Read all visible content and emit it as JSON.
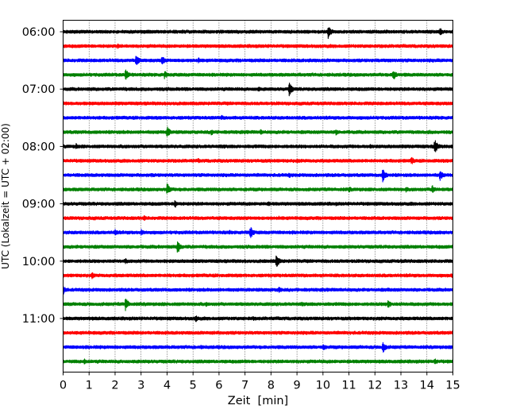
{
  "chart_data": {
    "type": "line",
    "title": "",
    "xlabel": "Zeit  [min]",
    "ylabel": "UTC (Lokalzeit = UTC + 02:00)",
    "xlim": [
      0,
      15
    ],
    "x_ticks": [
      "0",
      "1",
      "2",
      "3",
      "4",
      "5",
      "6",
      "7",
      "8",
      "9",
      "10",
      "11",
      "12",
      "13",
      "14",
      "15"
    ],
    "y_ticks": [
      "06:00",
      "07:00",
      "08:00",
      "09:00",
      "10:00",
      "11:00"
    ],
    "grid": "vertical dotted",
    "trace_minutes": 15,
    "color_cycle": [
      "#000000",
      "#ff0000",
      "#0000ff",
      "#008000"
    ],
    "series": [
      {
        "start": "06:00",
        "bursts": [
          [
            10.2,
            1.0
          ],
          [
            14.5,
            0.6
          ],
          [
            3.1,
            0.35
          ],
          [
            4.6,
            0.3
          ]
        ]
      },
      {
        "start": "06:15",
        "bursts": [
          [
            2.1,
            0.35
          ],
          [
            7.4,
            0.25
          ],
          [
            11.8,
            0.25
          ]
        ]
      },
      {
        "start": "06:30",
        "bursts": [
          [
            2.8,
            0.9
          ],
          [
            3.8,
            0.7
          ],
          [
            5.2,
            0.45
          ],
          [
            9.5,
            0.35
          ],
          [
            12.5,
            0.35
          ]
        ]
      },
      {
        "start": "06:45",
        "bursts": [
          [
            2.4,
            0.9
          ],
          [
            3.9,
            0.6
          ],
          [
            9.1,
            0.3
          ],
          [
            12.7,
            0.85
          ]
        ]
      },
      {
        "start": "07:00",
        "bursts": [
          [
            8.7,
            1.0
          ],
          [
            7.5,
            0.4
          ],
          [
            1.2,
            0.2
          ]
        ]
      },
      {
        "start": "07:15",
        "bursts": [
          [
            5.5,
            0.2
          ],
          [
            10.3,
            0.2
          ]
        ]
      },
      {
        "start": "07:30",
        "bursts": [
          [
            6.1,
            0.4
          ],
          [
            3.0,
            0.2
          ],
          [
            11.5,
            0.2
          ]
        ]
      },
      {
        "start": "07:45",
        "bursts": [
          [
            4.0,
            0.85
          ],
          [
            5.7,
            0.5
          ],
          [
            7.6,
            0.4
          ],
          [
            10.5,
            0.45
          ],
          [
            14.1,
            0.3
          ]
        ]
      },
      {
        "start": "08:00",
        "bursts": [
          [
            14.3,
            1.1
          ],
          [
            0.5,
            0.45
          ],
          [
            3.2,
            0.3
          ],
          [
            6.2,
            0.3
          ],
          [
            11.8,
            0.35
          ]
        ]
      },
      {
        "start": "08:15",
        "bursts": [
          [
            13.4,
            0.6
          ],
          [
            5.2,
            0.35
          ],
          [
            9.0,
            0.35
          ]
        ]
      },
      {
        "start": "08:30",
        "bursts": [
          [
            12.3,
            1.0
          ],
          [
            14.5,
            0.8
          ],
          [
            8.7,
            0.4
          ],
          [
            3.4,
            0.3
          ]
        ]
      },
      {
        "start": "08:45",
        "bursts": [
          [
            4.0,
            0.9
          ],
          [
            14.2,
            0.7
          ],
          [
            11.0,
            0.45
          ],
          [
            13.2,
            0.4
          ],
          [
            6.0,
            0.3
          ]
        ]
      },
      {
        "start": "09:00",
        "bursts": [
          [
            4.3,
            0.6
          ],
          [
            7.9,
            0.35
          ],
          [
            10.5,
            0.3
          ],
          [
            13.4,
            0.3
          ]
        ]
      },
      {
        "start": "09:15",
        "bursts": [
          [
            3.1,
            0.45
          ],
          [
            1.2,
            0.3
          ],
          [
            8.3,
            0.3
          ],
          [
            12.0,
            0.25
          ]
        ]
      },
      {
        "start": "09:30",
        "bursts": [
          [
            7.2,
            0.95
          ],
          [
            2.0,
            0.55
          ],
          [
            3.0,
            0.5
          ],
          [
            6.4,
            0.35
          ],
          [
            14.5,
            0.3
          ]
        ]
      },
      {
        "start": "09:45",
        "bursts": [
          [
            4.4,
            1.0
          ],
          [
            12.4,
            0.3
          ],
          [
            1.5,
            0.2
          ]
        ]
      },
      {
        "start": "10:00",
        "bursts": [
          [
            8.2,
            1.0
          ],
          [
            2.4,
            0.45
          ],
          [
            5.0,
            0.3
          ],
          [
            13.0,
            0.3
          ]
        ]
      },
      {
        "start": "10:15",
        "bursts": [
          [
            1.1,
            0.55
          ],
          [
            4.1,
            0.35
          ],
          [
            14.95,
            0.45
          ],
          [
            9.0,
            0.25
          ]
        ]
      },
      {
        "start": "10:30",
        "bursts": [
          [
            8.3,
            0.5
          ],
          [
            0.02,
            0.6
          ],
          [
            12.5,
            0.3
          ],
          [
            4.8,
            0.25
          ]
        ]
      },
      {
        "start": "10:45",
        "bursts": [
          [
            2.4,
            0.95
          ],
          [
            12.5,
            0.7
          ],
          [
            5.5,
            0.35
          ],
          [
            9.2,
            0.3
          ]
        ]
      },
      {
        "start": "11:00",
        "bursts": [
          [
            5.1,
            0.55
          ],
          [
            7.3,
            0.35
          ],
          [
            1.0,
            0.25
          ],
          [
            11.2,
            0.25
          ]
        ]
      },
      {
        "start": "11:15",
        "bursts": [
          [
            5.8,
            0.3
          ],
          [
            9.6,
            0.3
          ],
          [
            13.2,
            0.25
          ]
        ]
      },
      {
        "start": "11:30",
        "bursts": [
          [
            12.3,
            0.9
          ],
          [
            10.0,
            0.55
          ],
          [
            5.3,
            0.3
          ],
          [
            2.0,
            0.25
          ]
        ]
      },
      {
        "start": "11:45",
        "bursts": [
          [
            0.8,
            0.45
          ],
          [
            14.3,
            0.5
          ],
          [
            3.3,
            0.3
          ],
          [
            8.0,
            0.25
          ]
        ]
      }
    ]
  }
}
